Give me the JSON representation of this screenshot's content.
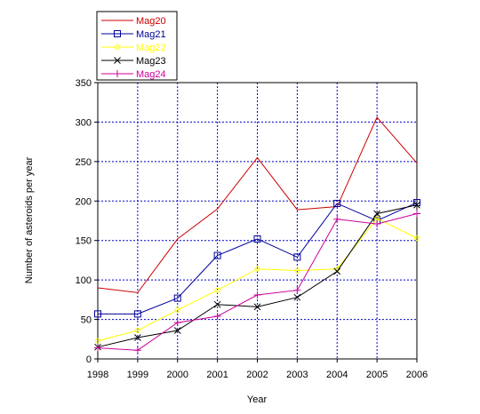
{
  "chart_data": {
    "type": "line",
    "title": "",
    "xlabel": "Year",
    "ylabel": "Number of asteroids per year",
    "x": [
      1998,
      1999,
      2000,
      2001,
      2002,
      2003,
      2004,
      2005,
      2006
    ],
    "x_tick_labels": [
      "1998",
      "1999",
      "2000",
      "2001",
      "2002",
      "2003",
      "2004",
      "2005",
      "2006"
    ],
    "ylim": [
      0,
      350
    ],
    "y_ticks": [
      0,
      50,
      100,
      150,
      200,
      250,
      300,
      350
    ],
    "y_tick_labels": [
      "0",
      "50",
      "100",
      "150",
      "200",
      "250",
      "300",
      "350"
    ],
    "grid": true,
    "legend_placement": "top-left, above plot",
    "series": [
      {
        "name": "Mag20",
        "color": "#cc0000",
        "marker": "none",
        "values": [
          90,
          84,
          152,
          190,
          255,
          189,
          193,
          306,
          248
        ]
      },
      {
        "name": "Mag21",
        "color": "#000099",
        "marker": "square",
        "values": [
          57,
          57,
          77,
          131,
          152,
          129,
          197,
          175,
          198
        ]
      },
      {
        "name": "Mag22",
        "color": "#ffff00",
        "marker": "circle",
        "values": [
          23,
          36,
          62,
          87,
          114,
          112,
          114,
          178,
          153
        ]
      },
      {
        "name": "Mag23",
        "color": "#000000",
        "marker": "x",
        "values": [
          15,
          27,
          36,
          69,
          66,
          78,
          111,
          184,
          195
        ]
      },
      {
        "name": "Mag24",
        "color": "#cc0099",
        "marker": "plus",
        "values": [
          14,
          11,
          46,
          54,
          81,
          87,
          177,
          171,
          184
        ]
      }
    ]
  }
}
